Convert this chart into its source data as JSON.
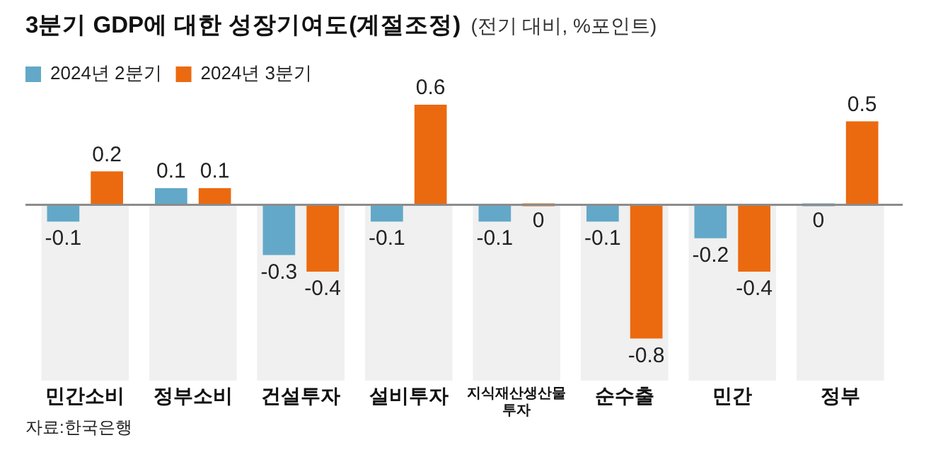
{
  "chart_data": {
    "type": "bar",
    "title": "3분기 GDP에 대한 성장기여도(계절조정)",
    "subtitle": "(전기 대비, %포인트)",
    "categories": [
      "민간소비",
      "정부소비",
      "건설투자",
      "설비투자",
      "지식재산생산물 투자",
      "순수출",
      "민간",
      "정부"
    ],
    "series": [
      {
        "name": "2024년 2분기",
        "color": "#63a8c8",
        "values": [
          -0.1,
          0.1,
          -0.3,
          -0.1,
          -0.1,
          -0.1,
          -0.2,
          0
        ]
      },
      {
        "name": "2024년 3분기",
        "color": "#eb6a0f",
        "values": [
          0.2,
          0.1,
          -0.4,
          0.6,
          0,
          -0.8,
          -0.4,
          0.5
        ]
      }
    ],
    "bands": [
      {
        "axis": "x",
        "from": "민간소비",
        "to": "민간소비",
        "color": "#f0f0f0"
      },
      {
        "axis": "x",
        "from": "정부소비",
        "to": "정부소비",
        "color": "#f0f0f0"
      },
      {
        "axis": "x",
        "from": "건설투자",
        "to": "건설투자",
        "color": "#f0f0f0"
      },
      {
        "axis": "x",
        "from": "설비투자",
        "to": "설비투자",
        "color": "#f0f0f0"
      },
      {
        "axis": "x",
        "from": "지식재산생산물 투자",
        "to": "지식재산생산물 투자",
        "color": "#f0f0f0"
      },
      {
        "axis": "x",
        "from": "순수출",
        "to": "순수출",
        "color": "#f0f0f0"
      },
      {
        "axis": "x",
        "from": "민간",
        "to": "민간",
        "color": "#f0f0f0"
      },
      {
        "axis": "x",
        "from": "정부",
        "to": "정부",
        "color": "#f0f0f0"
      }
    ],
    "data_labels": true,
    "legend": "top left",
    "tick_labels": "x",
    "annotations": [
      "자료:한국은행"
    ]
  }
}
